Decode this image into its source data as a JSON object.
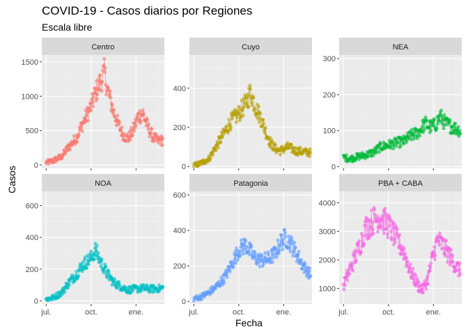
{
  "title": "COVID-19 - Casos diarios por Regiones",
  "subtitle": "Escala libre",
  "chart_data": {
    "type": "scatter",
    "xlabel": "Fecha",
    "ylabel": "Casos",
    "x_tick_labels": [
      "jul.",
      "oct.",
      "ene."
    ],
    "x_tick_dates": [
      "2020-07-01",
      "2020-10-01",
      "2021-01-01"
    ],
    "xlim": [
      "2020-06-22",
      "2021-02-28"
    ],
    "grid": true,
    "legend": "none",
    "panels": [
      {
        "name": "Centro",
        "color": "#F8766D",
        "ylim": [
          -50,
          1600
        ],
        "y_ticks": [
          0,
          500,
          1000,
          1500
        ],
        "points": [
          [
            "2020-07-01",
            30
          ],
          [
            "2020-07-15",
            60
          ],
          [
            "2020-08-01",
            120
          ],
          [
            "2020-08-15",
            250
          ],
          [
            "2020-09-01",
            400
          ],
          [
            "2020-09-15",
            620
          ],
          [
            "2020-10-01",
            850
          ],
          [
            "2020-10-10",
            1050
          ],
          [
            "2020-10-20",
            1200
          ],
          [
            "2020-10-28",
            1350
          ],
          [
            "2020-11-05",
            1050
          ],
          [
            "2020-11-15",
            800
          ],
          [
            "2020-11-25",
            600
          ],
          [
            "2020-12-05",
            450
          ],
          [
            "2020-12-15",
            380
          ],
          [
            "2020-12-25",
            480
          ],
          [
            "2021-01-05",
            700
          ],
          [
            "2021-01-15",
            750
          ],
          [
            "2021-01-25",
            550
          ],
          [
            "2021-02-05",
            400
          ],
          [
            "2021-02-15",
            350
          ],
          [
            "2021-02-25",
            360
          ]
        ]
      },
      {
        "name": "Cuyo",
        "color": "#B79F00",
        "ylim": [
          -10,
          570
        ],
        "y_ticks": [
          0,
          200,
          400
        ],
        "points": [
          [
            "2020-07-01",
            5
          ],
          [
            "2020-07-15",
            15
          ],
          [
            "2020-08-01",
            40
          ],
          [
            "2020-08-15",
            100
          ],
          [
            "2020-09-01",
            170
          ],
          [
            "2020-09-15",
            230
          ],
          [
            "2020-10-01",
            270
          ],
          [
            "2020-10-15",
            320
          ],
          [
            "2020-10-25",
            380
          ],
          [
            "2020-11-05",
            300
          ],
          [
            "2020-11-15",
            250
          ],
          [
            "2020-11-25",
            180
          ],
          [
            "2020-12-05",
            120
          ],
          [
            "2020-12-15",
            90
          ],
          [
            "2020-12-25",
            80
          ],
          [
            "2021-01-10",
            100
          ],
          [
            "2021-01-25",
            80
          ],
          [
            "2021-02-10",
            75
          ],
          [
            "2021-02-25",
            70
          ]
        ]
      },
      {
        "name": "NEA",
        "color": "#00BA38",
        "ylim": [
          -5,
          310
        ],
        "y_ticks": [
          0,
          100,
          200,
          300
        ],
        "points": [
          [
            "2020-07-01",
            25
          ],
          [
            "2020-07-15",
            22
          ],
          [
            "2020-08-01",
            28
          ],
          [
            "2020-08-15",
            32
          ],
          [
            "2020-09-01",
            40
          ],
          [
            "2020-09-15",
            55
          ],
          [
            "2020-10-01",
            60
          ],
          [
            "2020-10-15",
            65
          ],
          [
            "2020-11-01",
            70
          ],
          [
            "2020-11-15",
            85
          ],
          [
            "2020-12-01",
            95
          ],
          [
            "2020-12-15",
            120
          ],
          [
            "2020-12-25",
            110
          ],
          [
            "2021-01-05",
            115
          ],
          [
            "2021-01-15",
            140
          ],
          [
            "2021-01-25",
            120
          ],
          [
            "2021-02-10",
            110
          ],
          [
            "2021-02-25",
            100
          ]
        ]
      },
      {
        "name": "NOA",
        "color": "#00BFC4",
        "ylim": [
          -20,
          690
        ],
        "y_ticks": [
          0,
          200,
          400,
          600
        ],
        "points": [
          [
            "2020-07-01",
            10
          ],
          [
            "2020-07-15",
            20
          ],
          [
            "2020-08-01",
            50
          ],
          [
            "2020-08-15",
            110
          ],
          [
            "2020-09-01",
            170
          ],
          [
            "2020-09-15",
            230
          ],
          [
            "2020-10-01",
            270
          ],
          [
            "2020-10-10",
            320
          ],
          [
            "2020-10-20",
            250
          ],
          [
            "2020-11-01",
            180
          ],
          [
            "2020-11-15",
            120
          ],
          [
            "2020-12-01",
            90
          ],
          [
            "2020-12-15",
            70
          ],
          [
            "2021-01-01",
            75
          ],
          [
            "2021-01-15",
            80
          ],
          [
            "2021-02-01",
            75
          ],
          [
            "2021-02-25",
            80
          ]
        ]
      },
      {
        "name": "Patagonia",
        "color": "#619CFF",
        "ylim": [
          -15,
          620
        ],
        "y_ticks": [
          0,
          200,
          400,
          600
        ],
        "points": [
          [
            "2020-07-01",
            15
          ],
          [
            "2020-07-15",
            25
          ],
          [
            "2020-08-01",
            50
          ],
          [
            "2020-08-15",
            80
          ],
          [
            "2020-09-01",
            130
          ],
          [
            "2020-09-15",
            200
          ],
          [
            "2020-10-01",
            290
          ],
          [
            "2020-10-15",
            320
          ],
          [
            "2020-11-01",
            250
          ],
          [
            "2020-11-15",
            230
          ],
          [
            "2020-12-01",
            240
          ],
          [
            "2020-12-15",
            270
          ],
          [
            "2020-12-25",
            330
          ],
          [
            "2021-01-05",
            360
          ],
          [
            "2021-01-15",
            330
          ],
          [
            "2021-01-25",
            280
          ],
          [
            "2021-02-10",
            200
          ],
          [
            "2021-02-25",
            150
          ]
        ]
      },
      {
        "name": "PBA + CABA",
        "color": "#F564E3",
        "ylim": [
          450,
          4400
        ],
        "y_ticks": [
          1000,
          2000,
          3000,
          4000
        ],
        "points": [
          [
            "2020-07-01",
            1100
          ],
          [
            "2020-07-15",
            1700
          ],
          [
            "2020-08-01",
            2400
          ],
          [
            "2020-08-15",
            3100
          ],
          [
            "2020-09-01",
            3400
          ],
          [
            "2020-09-15",
            3500
          ],
          [
            "2020-10-01",
            3200
          ],
          [
            "2020-10-15",
            2800
          ],
          [
            "2020-11-01",
            2300
          ],
          [
            "2020-11-15",
            1600
          ],
          [
            "2020-12-01",
            1100
          ],
          [
            "2020-12-10",
            950
          ],
          [
            "2020-12-20",
            1300
          ],
          [
            "2021-01-01",
            2200
          ],
          [
            "2021-01-10",
            2700
          ],
          [
            "2021-01-20",
            2500
          ],
          [
            "2021-02-01",
            2200
          ],
          [
            "2021-02-15",
            1800
          ],
          [
            "2021-02-25",
            1600
          ]
        ]
      }
    ]
  }
}
